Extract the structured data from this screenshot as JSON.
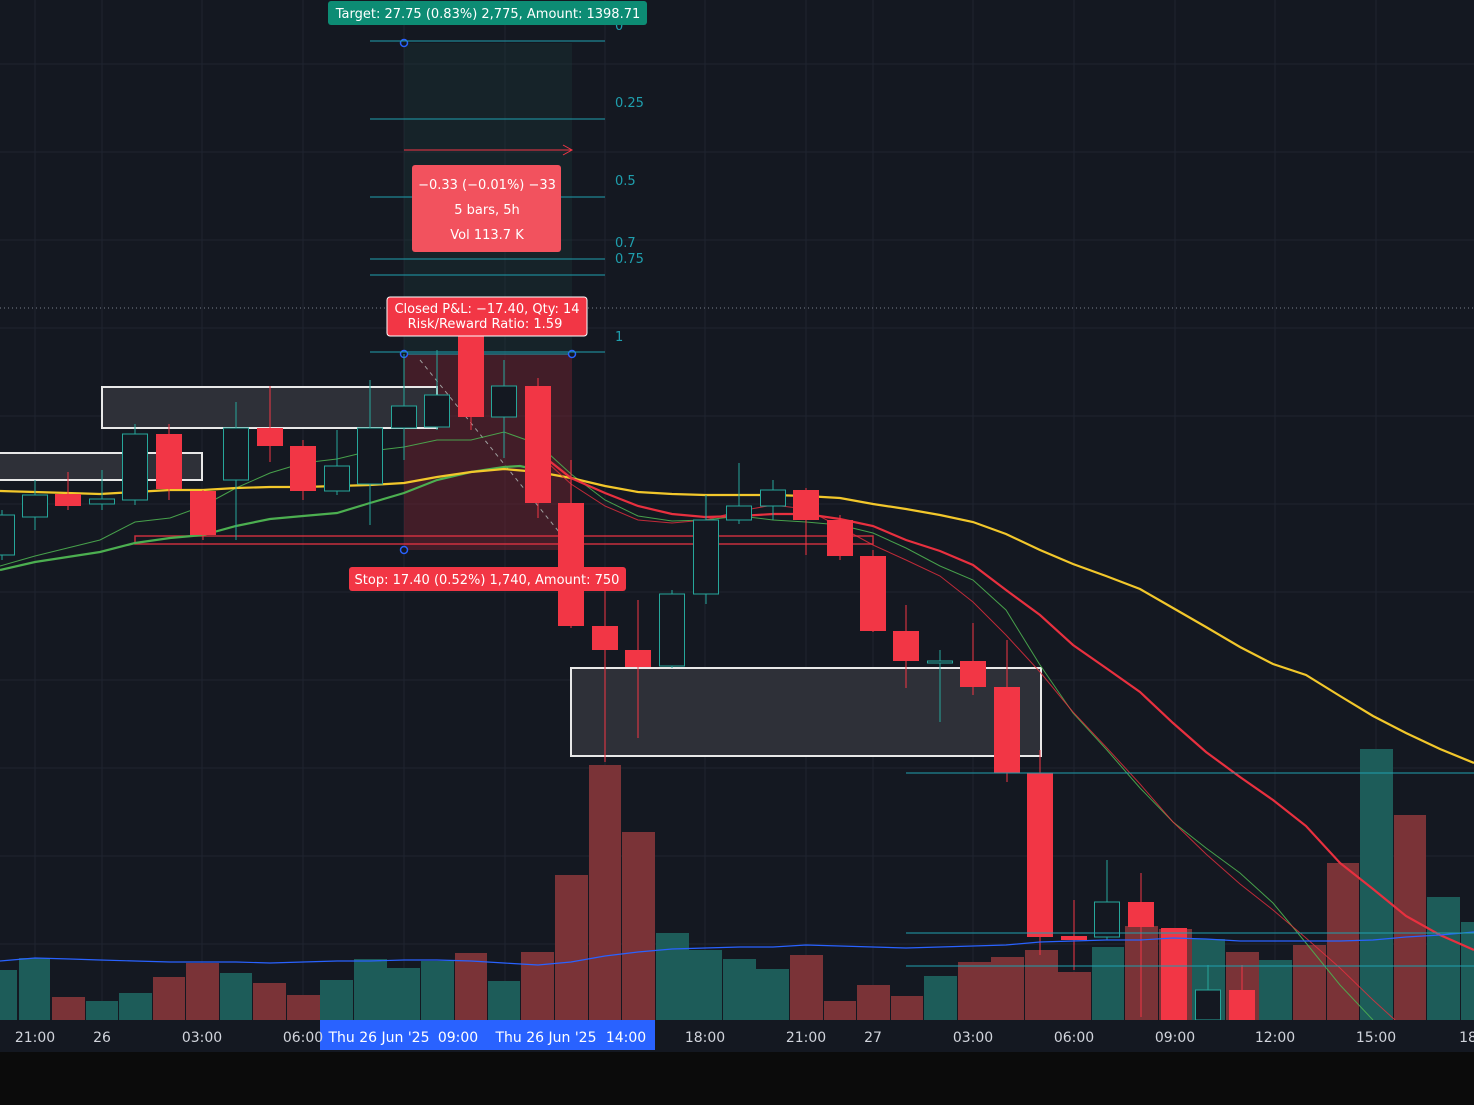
{
  "colors": {
    "background": "#141821",
    "grid": "#1f2430",
    "bull": "#26a69a",
    "bear": "#f23645",
    "bull_volume": "#1d5c59",
    "bear_volume": "#7a3337",
    "ma_yellow": "#f2c72b",
    "ma_red": "#e8303f",
    "ma_green": "#4caf50",
    "volume_ma": "#2962ff",
    "fib": "#1f9fae",
    "highlight": "#2962ff"
  },
  "labels": {
    "target": "Target: 27.75 (0.83%) 2,775, Amount: 1398.71",
    "stop": "Stop: 17.40 (0.52%) 1,740, Amount: 750",
    "closed_pnl": "Closed P&L: −17.40, Qty: 14",
    "risk_reward": "Risk/Reward Ratio: 1.59",
    "measure_change": "−0.33 (−0.01%) −33",
    "measure_bars": "5 bars, 5h",
    "measure_vol": "Vol 113.7 K"
  },
  "fib_levels": [
    "0",
    "0.25",
    "0.5",
    "0.7",
    "0.75",
    "1"
  ],
  "time_axis": {
    "ticks": [
      "21:00",
      "26",
      "03:00",
      "06:00",
      "18:00",
      "21:00",
      "27",
      "03:00",
      "06:00",
      "09:00",
      "12:00",
      "15:00",
      "18"
    ],
    "highlight_labels": [
      "Thu 26 Jun '25",
      "09:00",
      "Thu 26 Jun '25",
      "14:00"
    ]
  }
}
